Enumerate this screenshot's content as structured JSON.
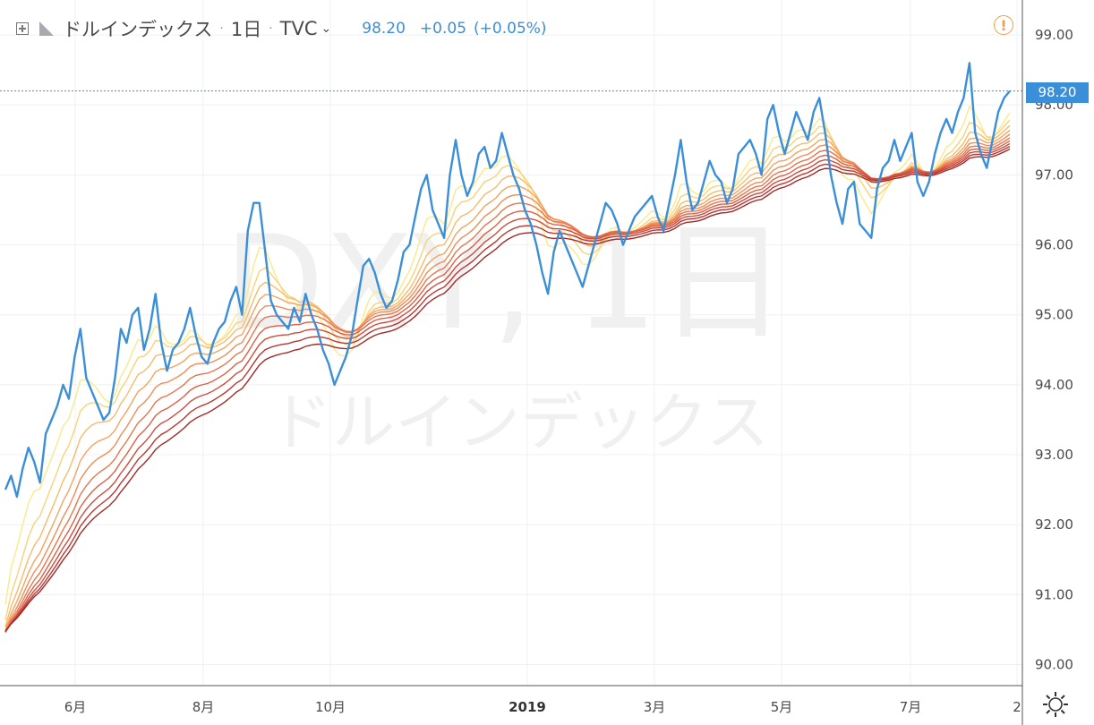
{
  "legend": {
    "symbol_name": "ドルインデックス",
    "interval": "1日",
    "exchange": "TVC",
    "last": "98.20",
    "change": "+0.05",
    "change_pct": "(+0.05%)"
  },
  "watermark": {
    "ticker": "DXY, 1日",
    "name": "ドルインデックス"
  },
  "price_tag": "98.20",
  "colors": {
    "price_line": "#3a8fd8",
    "ribbon": [
      "#fce98a",
      "#f9d27a",
      "#f6bb6c",
      "#f3a460",
      "#ee8d56",
      "#e6764d",
      "#db6045",
      "#cd4b3d",
      "#b83732",
      "#a02a27"
    ],
    "grid": "#eef0f3",
    "alert": "#f39c4a"
  },
  "icons": [
    "add-panel-icon",
    "flag-icon",
    "chevron-down-icon",
    "alert-icon",
    "settings-gear-icon"
  ],
  "chart_data": {
    "type": "line",
    "ylim": [
      89.7,
      99.5
    ],
    "y_ticks": [
      "90.00",
      "91.00",
      "92.00",
      "93.00",
      "94.00",
      "95.00",
      "96.00",
      "97.00",
      "98.00",
      "99.00"
    ],
    "x_ticks": [
      "6月",
      "8月",
      "10月",
      "2019",
      "3月",
      "5月",
      "7月",
      "2"
    ],
    "series": [
      {
        "values": [
          92.5,
          92.7,
          92.4,
          92.8,
          93.1,
          92.9,
          92.6,
          93.3,
          93.5,
          93.7,
          94.0,
          93.8,
          94.4,
          94.8,
          94.1,
          93.9,
          93.7,
          93.5,
          93.6,
          94.1,
          94.8,
          94.6,
          95.0,
          95.1,
          94.5,
          94.8,
          95.3,
          94.6,
          94.2,
          94.5,
          94.6,
          94.8,
          95.1,
          94.7,
          94.4,
          94.3,
          94.6,
          94.8,
          94.9,
          95.2,
          95.4,
          95.0,
          96.2,
          96.6,
          96.6,
          95.9,
          95.2,
          95.0,
          94.9,
          94.8,
          95.1,
          94.9,
          95.3,
          95.0,
          94.8,
          94.5,
          94.3,
          94.0,
          94.2,
          94.4,
          94.7,
          95.2,
          95.7,
          95.8,
          95.6,
          95.3,
          95.1,
          95.2,
          95.5,
          95.9,
          96.0,
          96.4,
          96.8,
          97.0,
          96.5,
          96.3,
          96.1,
          97.0,
          97.5,
          97.0,
          96.7,
          96.9,
          97.3,
          97.4,
          97.1,
          97.2,
          97.6,
          97.3,
          97.0,
          96.8,
          96.5,
          96.3,
          96.0,
          95.6,
          95.3,
          95.9,
          96.2,
          96.0,
          95.8,
          95.6,
          95.4,
          95.7,
          96.0,
          96.3,
          96.6,
          96.5,
          96.3,
          96.0,
          96.2,
          96.4,
          96.5,
          96.6,
          96.7,
          96.4,
          96.2,
          96.6,
          97.0,
          97.5,
          96.9,
          96.5,
          96.6,
          96.9,
          97.2,
          97.0,
          96.9,
          96.6,
          96.8,
          97.3,
          97.4,
          97.5,
          97.3,
          97.0,
          97.8,
          98.0,
          97.6,
          97.3,
          97.6,
          97.9,
          97.7,
          97.5,
          97.9,
          98.1,
          97.6,
          97.0,
          96.6,
          96.3,
          96.8,
          96.9,
          96.3,
          96.2,
          96.1,
          96.8,
          97.1,
          97.2,
          97.5,
          97.2,
          97.4,
          97.6,
          96.9,
          96.7,
          96.9,
          97.3,
          97.6,
          97.8,
          97.6,
          97.9,
          98.1,
          98.6,
          97.6,
          97.3,
          97.1,
          97.5,
          97.9,
          98.1,
          98.2
        ]
      }
    ]
  }
}
